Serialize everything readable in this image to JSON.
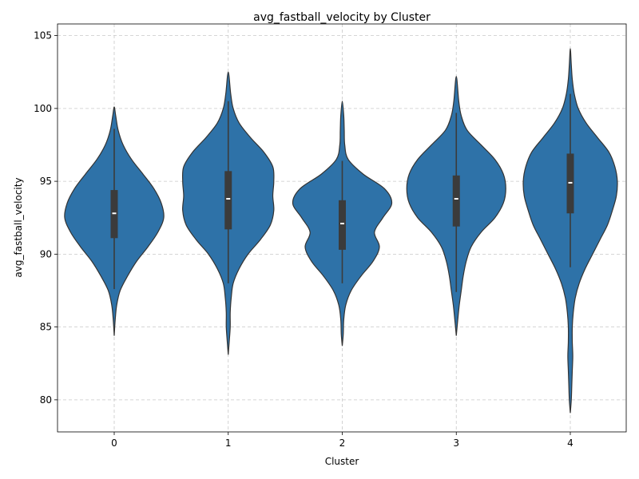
{
  "chart_data": {
    "type": "violin",
    "title": "avg_fastball_velocity by Cluster",
    "xlabel": "Cluster",
    "ylabel": "avg_fastball_velocity",
    "categories": [
      "0",
      "1",
      "2",
      "3",
      "4"
    ],
    "ylim": [
      77.8,
      105.8
    ],
    "yticks": [
      80,
      85,
      90,
      95,
      100,
      105
    ],
    "grid": true,
    "colors": {
      "violin_fill": "#2e72a8",
      "violin_edge": "#333333",
      "box": "#3b3b3b",
      "median": "#ffffff"
    },
    "violins": [
      {
        "category": "0",
        "q1": 91.1,
        "median": 92.8,
        "q3": 94.4,
        "whisker_low": 87.6,
        "whisker_high": 98.6,
        "profile": [
          [
            84.4,
            0.0
          ],
          [
            85.5,
            0.02
          ],
          [
            86.5,
            0.05
          ],
          [
            87.5,
            0.12
          ],
          [
            88.5,
            0.27
          ],
          [
            89.5,
            0.45
          ],
          [
            90.5,
            0.68
          ],
          [
            91.5,
            0.88
          ],
          [
            92.5,
            1.0
          ],
          [
            93.5,
            0.95
          ],
          [
            94.5,
            0.8
          ],
          [
            95.5,
            0.58
          ],
          [
            96.5,
            0.35
          ],
          [
            97.5,
            0.18
          ],
          [
            98.5,
            0.08
          ],
          [
            99.5,
            0.03
          ],
          [
            100.1,
            0.0
          ]
        ]
      },
      {
        "category": "1",
        "q1": 91.7,
        "median": 93.8,
        "q3": 95.7,
        "whisker_low": 88.0,
        "whisker_high": 100.5,
        "profile": [
          [
            83.1,
            0.0
          ],
          [
            84.0,
            0.02
          ],
          [
            85.0,
            0.04
          ],
          [
            86.0,
            0.04
          ],
          [
            87.0,
            0.06
          ],
          [
            88.0,
            0.1
          ],
          [
            89.0,
            0.22
          ],
          [
            90.0,
            0.4
          ],
          [
            91.0,
            0.65
          ],
          [
            92.0,
            0.85
          ],
          [
            93.0,
            0.92
          ],
          [
            94.0,
            0.9
          ],
          [
            95.0,
            0.92
          ],
          [
            96.0,
            0.9
          ],
          [
            97.0,
            0.72
          ],
          [
            98.0,
            0.45
          ],
          [
            99.0,
            0.22
          ],
          [
            100.0,
            0.1
          ],
          [
            101.0,
            0.05
          ],
          [
            102.5,
            0.0
          ]
        ]
      },
      {
        "category": "2",
        "q1": 90.3,
        "median": 92.1,
        "q3": 93.7,
        "whisker_low": 88.0,
        "whisker_high": 96.4,
        "profile": [
          [
            83.7,
            0.0
          ],
          [
            84.5,
            0.02
          ],
          [
            85.5,
            0.03
          ],
          [
            86.5,
            0.07
          ],
          [
            87.5,
            0.18
          ],
          [
            88.5,
            0.38
          ],
          [
            89.5,
            0.62
          ],
          [
            90.5,
            0.75
          ],
          [
            91.5,
            0.65
          ],
          [
            92.5,
            0.82
          ],
          [
            93.5,
            1.0
          ],
          [
            94.5,
            0.85
          ],
          [
            95.5,
            0.42
          ],
          [
            96.5,
            0.12
          ],
          [
            97.5,
            0.05
          ],
          [
            98.5,
            0.04
          ],
          [
            99.5,
            0.03
          ],
          [
            100.5,
            0.0
          ]
        ]
      },
      {
        "category": "3",
        "q1": 91.9,
        "median": 93.8,
        "q3": 95.4,
        "whisker_low": 87.4,
        "whisker_high": 99.7,
        "profile": [
          [
            84.4,
            0.0
          ],
          [
            85.5,
            0.03
          ],
          [
            86.5,
            0.06
          ],
          [
            87.5,
            0.1
          ],
          [
            88.5,
            0.14
          ],
          [
            89.5,
            0.2
          ],
          [
            90.5,
            0.3
          ],
          [
            91.5,
            0.5
          ],
          [
            92.5,
            0.78
          ],
          [
            93.5,
            0.95
          ],
          [
            94.5,
            1.0
          ],
          [
            95.5,
            0.95
          ],
          [
            96.5,
            0.78
          ],
          [
            97.5,
            0.5
          ],
          [
            98.5,
            0.22
          ],
          [
            99.5,
            0.1
          ],
          [
            100.5,
            0.05
          ],
          [
            102.2,
            0.0
          ]
        ]
      },
      {
        "category": "4",
        "q1": 92.8,
        "median": 94.9,
        "q3": 96.9,
        "whisker_low": 89.1,
        "whisker_high": 101.0,
        "profile": [
          [
            79.1,
            0.0
          ],
          [
            80.0,
            0.02
          ],
          [
            81.0,
            0.03
          ],
          [
            82.0,
            0.04
          ],
          [
            83.0,
            0.05
          ],
          [
            84.0,
            0.04
          ],
          [
            85.0,
            0.04
          ],
          [
            86.0,
            0.06
          ],
          [
            87.0,
            0.1
          ],
          [
            88.0,
            0.18
          ],
          [
            89.0,
            0.3
          ],
          [
            90.0,
            0.45
          ],
          [
            91.0,
            0.6
          ],
          [
            92.0,
            0.75
          ],
          [
            93.0,
            0.85
          ],
          [
            94.0,
            0.93
          ],
          [
            95.0,
            0.95
          ],
          [
            96.0,
            0.9
          ],
          [
            97.0,
            0.78
          ],
          [
            98.0,
            0.55
          ],
          [
            99.0,
            0.32
          ],
          [
            100.0,
            0.16
          ],
          [
            101.0,
            0.08
          ],
          [
            102.0,
            0.04
          ],
          [
            103.0,
            0.02
          ],
          [
            104.1,
            0.0
          ]
        ]
      }
    ]
  }
}
